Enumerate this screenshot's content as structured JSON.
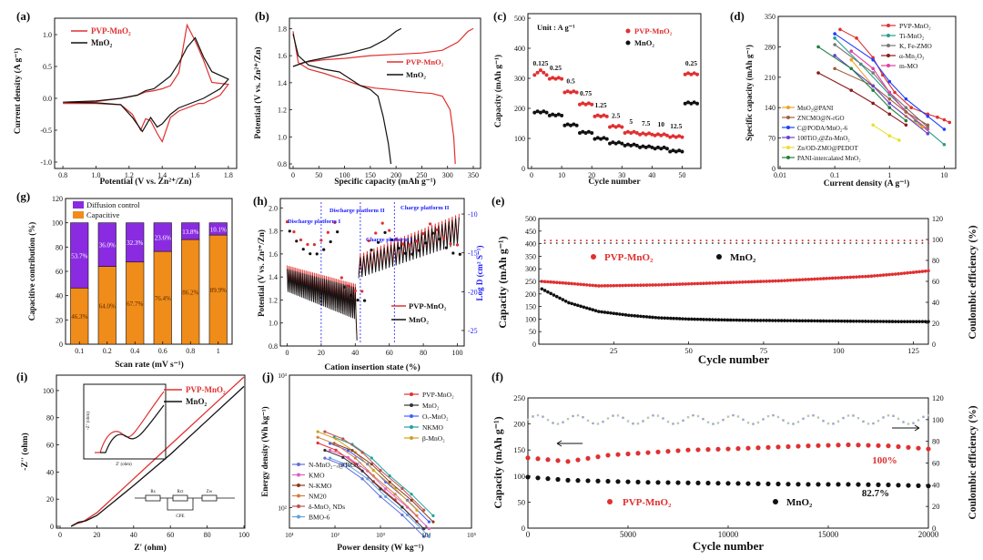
{
  "colors": {
    "pvp": "#e03030",
    "mno2": "#111111",
    "purple": "#8a2be2",
    "orange": "#f08c1a",
    "blue": "#1a1aff",
    "gray": "#9aa6c8"
  },
  "panels": {
    "a": {
      "label": "(a)",
      "xlabel": "Potential (V vs. Zn²⁺/Zn)",
      "ylabel": "Current density (A g⁻¹)",
      "xticks": [
        "0.8",
        "1.0",
        "1.2",
        "1.4",
        "1.6",
        "1.8"
      ],
      "yticks": [
        "-1.0",
        "-0.5",
        "0.0",
        "0.5",
        "1.0"
      ],
      "legend": [
        "PVP-MnO₂",
        "MnO₂"
      ]
    },
    "b": {
      "label": "(b)",
      "xlabel": "Specific capacity (mAh g⁻¹)",
      "ylabel": "Potential (V vs. Zn²⁺/Zn)",
      "xticks": [
        "0",
        "50",
        "100",
        "150",
        "200",
        "250",
        "300",
        "350"
      ],
      "yticks": [
        "0.8",
        "1.0",
        "1.2",
        "1.4",
        "1.6",
        "1.8"
      ],
      "legend": [
        "PVP-MnO₂",
        "MnO₂"
      ]
    },
    "c": {
      "label": "(c)",
      "xlabel": "Cycle number",
      "ylabel": "Capacity (mAh g⁻¹)",
      "unit": "Unit : A g⁻¹",
      "xticks": [
        "0",
        "10",
        "20",
        "30",
        "40",
        "50"
      ],
      "yticks": [
        "0",
        "100",
        "200",
        "300",
        "400",
        "500"
      ],
      "rate_labels": [
        "0.125",
        "0.25",
        "0.5",
        "0.75",
        "1.25",
        "2.5",
        "5",
        "7.5",
        "10",
        "12.5",
        "0.25"
      ],
      "legend": [
        "PVP-MnO₂",
        "MnO₂"
      ]
    },
    "d": {
      "label": "(d)",
      "xlabel": "Current density (A g⁻¹)",
      "ylabel": "Specific capacity (mAh g⁻¹)",
      "xticks": [
        "0.01",
        "0.1",
        "1",
        "10"
      ],
      "yticks": [
        "0",
        "70",
        "140",
        "210",
        "280",
        "350"
      ],
      "legend_right": [
        "PVP-MnO₂",
        "Ti-MnO₂",
        "K, Fe-ZMO",
        "α-Mn₂O₃",
        "m-MO"
      ],
      "legend_left": [
        "MnO₂@PANI",
        "ZNCMO@N-rGO",
        "C@PODA/MnO₂-6",
        "100TiO₂@Zn-MnO₂",
        "Zn/OD-ZMO@PEDOT",
        "PANI-intercalated MnO₂"
      ]
    },
    "g": {
      "label": "(g)",
      "xlabel": "Scan rate (mV s⁻¹)",
      "ylabel": "Capacitive contribution (%)",
      "xticks": [
        "0.1",
        "0.2",
        "0.4",
        "0.6",
        "0.8",
        "1"
      ],
      "yticks": [
        "0",
        "20",
        "40",
        "60",
        "80",
        "100",
        "120"
      ],
      "legend": [
        "Diffusion control",
        "Capacitive"
      ]
    },
    "h": {
      "label": "(h)",
      "xlabel": "Cation insertion state (%)",
      "ylabel": "Potential (V vs. Zn²⁺/Zn)",
      "ylabel2": "Log D (cm² S⁻¹)",
      "xticks": [
        "0",
        "20",
        "40",
        "60",
        "80",
        "100"
      ],
      "yticks": [
        "0.8",
        "1.0",
        "1.2",
        "1.4",
        "1.6",
        "1.8",
        "2.0"
      ],
      "yticks2": [
        "-10",
        "-15",
        "-20",
        "-25"
      ],
      "annotations": [
        "Discharge platform I",
        "Discharge platform II",
        "Charge platform I",
        "Charge platform II"
      ],
      "legend": [
        "PVP-MnO₂",
        "MnO₂"
      ]
    },
    "e": {
      "label": "(e)",
      "xlabel": "Cycle number",
      "ylabel": "Capacity (mAh g⁻¹)",
      "ylabel2": "Coulombic efficiency (%)",
      "xticks": [
        "25",
        "50",
        "75",
        "100",
        "125"
      ],
      "yticks": [
        "0",
        "50",
        "100",
        "150",
        "200",
        "250",
        "300",
        "350",
        "400",
        "450",
        "500"
      ],
      "yticks2": [
        "0",
        "20",
        "40",
        "60",
        "80",
        "100",
        "120"
      ],
      "legend": [
        "PVP-MnO₂",
        "MnO₂"
      ]
    },
    "i": {
      "label": "(i)",
      "xlabel": "Z' (ohm)",
      "ylabel": "-Z'' (ohm)",
      "xticks": [
        "0",
        "20",
        "40",
        "60",
        "80",
        "100"
      ],
      "yticks": [
        "0",
        "20",
        "40",
        "60",
        "80",
        "100"
      ],
      "inset_xlabel": "Z' (ohm)",
      "inset_ylabel": "-Z'' (ohm)",
      "circuit_labels": [
        "Rs",
        "Rct",
        "Zw",
        "CPE"
      ],
      "legend": [
        "PVP-MnO₂",
        "MnO₂"
      ]
    },
    "j": {
      "label": "(j)",
      "xlabel": "Power density (W kg⁻¹)",
      "ylabel": "Energy density (Wh kg⁻¹)",
      "xticks": [
        "10¹",
        "10²",
        "10³",
        "10⁴",
        "10⁵"
      ],
      "yticks": [
        "10²",
        "10³"
      ],
      "legend_right": [
        "PVP-MnO₂",
        "MnO₂",
        "Oᵥ-MnO₂",
        "NKMO",
        "β-MnO₂"
      ],
      "legend_left": [
        "N-MnO₂₋ₓ@TiC/C",
        "KMO",
        "N-KMO",
        "NM20",
        "δ-MnO₂ NDs",
        "BMO-6"
      ]
    },
    "f": {
      "label": "(f)",
      "xlabel": "Cycle number",
      "ylabel": "Capacity (mAh g⁻¹)",
      "ylabel2": "Coulombic efficiency (%)",
      "xticks": [
        "0",
        "5000",
        "10000",
        "15000",
        "20000"
      ],
      "yticks": [
        "0",
        "50",
        "100",
        "150",
        "200",
        "250"
      ],
      "yticks2": [
        "0",
        "20",
        "40",
        "60",
        "80",
        "100",
        "120"
      ],
      "retention_pvp": "100%",
      "retention_mno2": "82.7%",
      "legend": [
        "PVP-MnO₂",
        "MnO₂"
      ]
    }
  },
  "chart_data": [
    {
      "panel": "a",
      "type": "line",
      "title": "",
      "xlim": [
        0.8,
        1.8
      ],
      "ylim": [
        -1.0,
        1.2
      ],
      "series": [
        {
          "name": "PVP-MnO₂",
          "x": [
            0.8,
            1.0,
            1.15,
            1.25,
            1.3,
            1.35,
            1.4,
            1.45,
            1.5,
            1.55,
            1.6,
            1.65,
            1.7,
            1.8,
            1.75,
            1.65,
            1.62,
            1.6,
            1.58,
            1.55,
            1.5,
            1.45,
            1.4,
            1.37,
            1.33,
            1.3,
            1.27,
            1.22,
            1.15,
            1.0,
            0.8
          ],
          "y": [
            -0.08,
            -0.05,
            0.0,
            0.05,
            0.1,
            0.12,
            0.15,
            0.2,
            0.4,
            1.15,
            0.9,
            0.6,
            0.25,
            0.22,
            0.05,
            -0.08,
            -0.08,
            -0.1,
            -0.12,
            -0.15,
            -0.2,
            -0.3,
            -0.68,
            -0.55,
            -0.35,
            -0.32,
            -0.5,
            -0.25,
            -0.1,
            -0.08,
            -0.08
          ]
        },
        {
          "name": "MnO₂",
          "x": [
            0.8,
            1.0,
            1.15,
            1.25,
            1.3,
            1.35,
            1.4,
            1.45,
            1.5,
            1.55,
            1.6,
            1.65,
            1.7,
            1.8,
            1.75,
            1.65,
            1.6,
            1.55,
            1.5,
            1.45,
            1.4,
            1.37,
            1.33,
            1.28,
            1.22,
            1.15,
            1.0,
            0.8
          ],
          "y": [
            -0.06,
            -0.04,
            0.0,
            0.05,
            0.12,
            0.15,
            0.25,
            0.35,
            0.55,
            0.8,
            0.95,
            0.65,
            0.42,
            0.3,
            0.15,
            0.0,
            -0.05,
            -0.1,
            -0.15,
            -0.25,
            -0.4,
            -0.45,
            -0.3,
            -0.52,
            -0.3,
            -0.1,
            -0.07,
            -0.06
          ]
        }
      ]
    },
    {
      "panel": "b",
      "type": "line",
      "xlim": [
        0,
        350
      ],
      "ylim": [
        0.8,
        1.85
      ],
      "series": [
        {
          "name": "PVP-MnO₂ discharge",
          "x": [
            0,
            10,
            30,
            60,
            100,
            130,
            160,
            190,
            215,
            240,
            270,
            290,
            305,
            312,
            315
          ],
          "y": [
            1.78,
            1.55,
            1.5,
            1.47,
            1.42,
            1.38,
            1.36,
            1.35,
            1.34,
            1.33,
            1.32,
            1.3,
            1.2,
            1.0,
            0.8
          ]
        },
        {
          "name": "PVP-MnO₂ charge",
          "x": [
            0,
            20,
            60,
            100,
            150,
            200,
            250,
            290,
            320,
            340,
            350
          ],
          "y": [
            1.52,
            1.55,
            1.57,
            1.58,
            1.6,
            1.61,
            1.62,
            1.64,
            1.7,
            1.78,
            1.8
          ]
        },
        {
          "name": "MnO₂ discharge",
          "x": [
            0,
            10,
            30,
            60,
            90,
            110,
            130,
            150,
            165,
            175,
            185,
            190
          ],
          "y": [
            1.76,
            1.6,
            1.53,
            1.5,
            1.48,
            1.43,
            1.38,
            1.35,
            1.3,
            1.15,
            0.95,
            0.8
          ]
        },
        {
          "name": "MnO₂ charge",
          "x": [
            0,
            30,
            70,
            110,
            150,
            180,
            200,
            210
          ],
          "y": [
            1.52,
            1.56,
            1.59,
            1.62,
            1.66,
            1.72,
            1.78,
            1.8
          ]
        }
      ]
    },
    {
      "panel": "c",
      "type": "scatter",
      "xlim": [
        0,
        55
      ],
      "ylim": [
        0,
        500
      ],
      "series": [
        {
          "name": "PVP-MnO₂",
          "values_per_rate": [
            315,
            300,
            255,
            215,
            175,
            140,
            120,
            115,
            112,
            106,
            315
          ]
        },
        {
          "name": "MnO₂",
          "values_per_rate": [
            188,
            178,
            145,
            120,
            100,
            85,
            78,
            72,
            68,
            58,
            218
          ]
        }
      ],
      "rate_labels": [
        "0.125",
        "0.25",
        "0.5",
        "0.75",
        "1.25",
        "2.5",
        "5",
        "7.5",
        "10",
        "12.5",
        "0.25"
      ]
    },
    {
      "panel": "d",
      "type": "line",
      "xscale": "log",
      "xlim": [
        0.01,
        15
      ],
      "ylim": [
        0,
        350
      ],
      "series": [
        {
          "name": "PVP-MnO₂",
          "x": [
            0.125,
            0.25,
            0.5,
            0.75,
            1.25,
            2.5,
            5,
            7.5,
            10,
            12.5
          ],
          "y": [
            320,
            300,
            255,
            215,
            175,
            140,
            125,
            118,
            112,
            106
          ]
        },
        {
          "name": "Ti-MnO₂",
          "x": [
            0.1,
            0.3,
            1,
            3,
            10
          ],
          "y": [
            300,
            240,
            170,
            110,
            55
          ]
        },
        {
          "name": "K, Fe-ZMO",
          "x": [
            0.1,
            0.5,
            1,
            2,
            5
          ],
          "y": [
            285,
            220,
            175,
            140,
            95
          ]
        },
        {
          "name": "α-Mn₂O₃",
          "x": [
            0.05,
            0.2,
            0.5,
            1,
            2
          ],
          "y": [
            220,
            180,
            150,
            125,
            100
          ]
        },
        {
          "name": "m-MO",
          "x": [
            0.2,
            0.5,
            1,
            2,
            5
          ],
          "y": [
            270,
            230,
            175,
            130,
            90
          ]
        },
        {
          "name": "MnO₂@PANI",
          "x": [
            0.2,
            0.5,
            1,
            2,
            4
          ],
          "y": [
            250,
            190,
            150,
            120,
            95
          ]
        },
        {
          "name": "ZNCMO@N-rGO",
          "x": [
            0.1,
            0.5,
            1,
            2,
            5
          ],
          "y": [
            230,
            190,
            160,
            130,
            100
          ]
        },
        {
          "name": "C@PODA/MnO₂-6",
          "x": [
            0.1,
            0.5,
            1,
            2,
            5,
            10
          ],
          "y": [
            310,
            250,
            200,
            160,
            120,
            90
          ]
        },
        {
          "name": "100TiO₂@Zn-MnO₂",
          "x": [
            0.1,
            0.5,
            1,
            5
          ],
          "y": [
            260,
            190,
            150,
            80
          ]
        },
        {
          "name": "Zn/OD-ZMO@PEDOT",
          "x": [
            0.5,
            1,
            1.5
          ],
          "y": [
            100,
            75,
            65
          ]
        },
        {
          "name": "PANI-intercalated MnO₂",
          "x": [
            0.05,
            0.2,
            0.5,
            1,
            2
          ],
          "y": [
            280,
            230,
            180,
            140,
            110
          ]
        }
      ]
    },
    {
      "panel": "g",
      "type": "bar",
      "categories": [
        "0.1",
        "0.2",
        "0.4",
        "0.6",
        "0.8",
        "1"
      ],
      "series": [
        {
          "name": "Capacitive",
          "values": [
            46.3,
            64.0,
            67.7,
            76.4,
            86.2,
            89.9
          ]
        },
        {
          "name": "Diffusion control",
          "values": [
            53.7,
            36.0,
            32.3,
            23.6,
            13.8,
            10.1
          ]
        }
      ],
      "ylim": [
        0,
        120
      ]
    },
    {
      "panel": "h",
      "type": "line",
      "xlim": [
        0,
        100
      ],
      "ylim": [
        0.8,
        2.05
      ],
      "ylim2": [
        -27,
        -8
      ]
    },
    {
      "panel": "e",
      "type": "scatter",
      "xlim": [
        0,
        130
      ],
      "ylim": [
        0,
        500
      ],
      "ylim2": [
        0,
        120
      ],
      "series": [
        {
          "name": "PVP-MnO₂",
          "x": [
            1,
            10,
            20,
            30,
            40,
            50,
            60,
            70,
            80,
            90,
            100,
            110,
            120,
            130
          ],
          "y": [
            250,
            242,
            232,
            234,
            236,
            240,
            244,
            248,
            252,
            258,
            264,
            270,
            280,
            292
          ]
        },
        {
          "name": "MnO₂",
          "x": [
            1,
            10,
            20,
            30,
            40,
            50,
            60,
            70,
            80,
            90,
            100,
            110,
            120,
            130
          ],
          "y": [
            220,
            165,
            130,
            115,
            105,
            100,
            97,
            95,
            94,
            93,
            92,
            91,
            90,
            90
          ]
        },
        {
          "name": "PVP-MnO₂ CE",
          "x": [
            1,
            130
          ],
          "y": [
            99,
            99
          ]
        },
        {
          "name": "MnO₂ CE",
          "x": [
            1,
            130
          ],
          "y": [
            97,
            96
          ]
        }
      ]
    },
    {
      "panel": "i",
      "type": "line",
      "xlim": [
        0,
        100
      ],
      "ylim": [
        0,
        110
      ],
      "series": [
        {
          "name": "PVP-MnO₂",
          "x": [
            6,
            9,
            12,
            20,
            40,
            60,
            80,
            100
          ],
          "y": [
            0,
            2,
            3,
            10,
            35,
            60,
            85,
            110
          ]
        },
        {
          "name": "MnO₂",
          "x": [
            6,
            10,
            14,
            20,
            40,
            60,
            80,
            100
          ],
          "y": [
            0,
            3,
            4,
            8,
            30,
            53,
            78,
            103
          ]
        }
      ]
    },
    {
      "panel": "j",
      "type": "scatter",
      "xscale": "log",
      "yscale": "log",
      "xlim": [
        10,
        100000
      ],
      "ylim": [
        70,
        1000
      ]
    },
    {
      "panel": "f",
      "type": "scatter",
      "xlim": [
        0,
        20000
      ],
      "ylim": [
        0,
        250
      ],
      "ylim2": [
        0,
        120
      ],
      "series": [
        {
          "name": "PVP-MnO₂",
          "x": [
            0,
            2000,
            4000,
            6000,
            8000,
            10000,
            12000,
            14000,
            16000,
            18000,
            20000
          ],
          "y": [
            135,
            128,
            140,
            145,
            150,
            152,
            155,
            158,
            160,
            158,
            152
          ]
        },
        {
          "name": "MnO₂",
          "x": [
            0,
            2000,
            4000,
            6000,
            8000,
            10000,
            12000,
            14000,
            16000,
            18000,
            20000
          ],
          "y": [
            98,
            92,
            90,
            88,
            87,
            86,
            85,
            84,
            84,
            83,
            81
          ]
        }
      ],
      "retention": {
        "PVP-MnO₂": "100%",
        "MnO₂": "82.7%"
      }
    }
  ]
}
